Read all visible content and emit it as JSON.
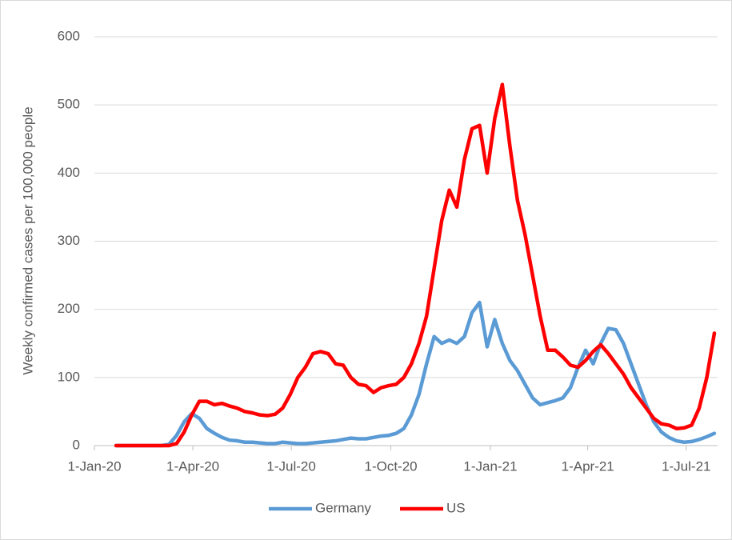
{
  "chart_data": {
    "type": "line",
    "y_label": "Weekly confirmed cases per 100,000 people",
    "x": [
      "2020-01-21",
      "2020-01-28",
      "2020-02-04",
      "2020-02-11",
      "2020-02-18",
      "2020-02-25",
      "2020-03-03",
      "2020-03-10",
      "2020-03-17",
      "2020-03-24",
      "2020-03-31",
      "2020-04-07",
      "2020-04-14",
      "2020-04-21",
      "2020-04-28",
      "2020-05-05",
      "2020-05-12",
      "2020-05-19",
      "2020-05-26",
      "2020-06-02",
      "2020-06-09",
      "2020-06-16",
      "2020-06-23",
      "2020-06-30",
      "2020-07-07",
      "2020-07-14",
      "2020-07-21",
      "2020-07-28",
      "2020-08-04",
      "2020-08-11",
      "2020-08-18",
      "2020-08-25",
      "2020-09-01",
      "2020-09-08",
      "2020-09-15",
      "2020-09-22",
      "2020-09-29",
      "2020-10-06",
      "2020-10-13",
      "2020-10-20",
      "2020-10-27",
      "2020-11-03",
      "2020-11-10",
      "2020-11-17",
      "2020-11-24",
      "2020-12-01",
      "2020-12-08",
      "2020-12-15",
      "2020-12-22",
      "2020-12-29",
      "2021-01-05",
      "2021-01-12",
      "2021-01-19",
      "2021-01-26",
      "2021-02-02",
      "2021-02-09",
      "2021-02-16",
      "2021-02-23",
      "2021-03-02",
      "2021-03-09",
      "2021-03-16",
      "2021-03-23",
      "2021-03-30",
      "2021-04-06",
      "2021-04-13",
      "2021-04-20",
      "2021-04-27",
      "2021-05-04",
      "2021-05-11",
      "2021-05-18",
      "2021-05-25",
      "2021-06-01",
      "2021-06-08",
      "2021-06-15",
      "2021-06-22",
      "2021-06-29",
      "2021-07-06",
      "2021-07-13",
      "2021-07-20",
      "2021-07-27"
    ],
    "series": [
      {
        "name": "Germany",
        "color": "#5b9bd5",
        "values": [
          0,
          0,
          0,
          0,
          0,
          0,
          0,
          2,
          15,
          35,
          47,
          40,
          25,
          18,
          12,
          8,
          7,
          5,
          5,
          4,
          3,
          3,
          5,
          4,
          3,
          3,
          4,
          5,
          6,
          7,
          9,
          11,
          10,
          10,
          12,
          14,
          15,
          18,
          25,
          45,
          75,
          120,
          160,
          150,
          155,
          150,
          160,
          195,
          210,
          145,
          185,
          150,
          125,
          110,
          90,
          70,
          60,
          63,
          66,
          70,
          85,
          115,
          140,
          120,
          150,
          172,
          170,
          150,
          120,
          90,
          60,
          35,
          20,
          12,
          7,
          5,
          6,
          9,
          13,
          18
        ]
      },
      {
        "name": "US",
        "color": "#ff0000",
        "values": [
          0,
          0,
          0,
          0,
          0,
          0,
          0,
          0,
          3,
          20,
          45,
          65,
          65,
          60,
          62,
          58,
          55,
          50,
          48,
          45,
          44,
          46,
          55,
          75,
          100,
          115,
          135,
          138,
          135,
          120,
          118,
          100,
          90,
          88,
          78,
          85,
          88,
          90,
          100,
          120,
          150,
          190,
          260,
          330,
          375,
          350,
          420,
          465,
          470,
          400,
          480,
          530,
          440,
          360,
          310,
          250,
          190,
          140,
          140,
          130,
          118,
          115,
          125,
          138,
          148,
          135,
          120,
          105,
          85,
          70,
          55,
          40,
          32,
          30,
          25,
          26,
          30,
          55,
          100,
          165
        ]
      }
    ],
    "xlim": [
      "2020-01-01",
      "2021-07-30"
    ],
    "xticks": [
      {
        "value": "2020-01-01",
        "label": "1-Jan-20"
      },
      {
        "value": "2020-04-01",
        "label": "1-Apr-20"
      },
      {
        "value": "2020-07-01",
        "label": "1-Jul-20"
      },
      {
        "value": "2020-10-01",
        "label": "1-Oct-20"
      },
      {
        "value": "2021-01-01",
        "label": "1-Jan-21"
      },
      {
        "value": "2021-04-01",
        "label": "1-Apr-21"
      },
      {
        "value": "2021-07-01",
        "label": "1-Jul-21"
      }
    ],
    "ylim": [
      0,
      600
    ],
    "yticks": [
      0,
      100,
      200,
      300,
      400,
      500,
      600
    ],
    "grid": true,
    "legend": "bottom"
  }
}
